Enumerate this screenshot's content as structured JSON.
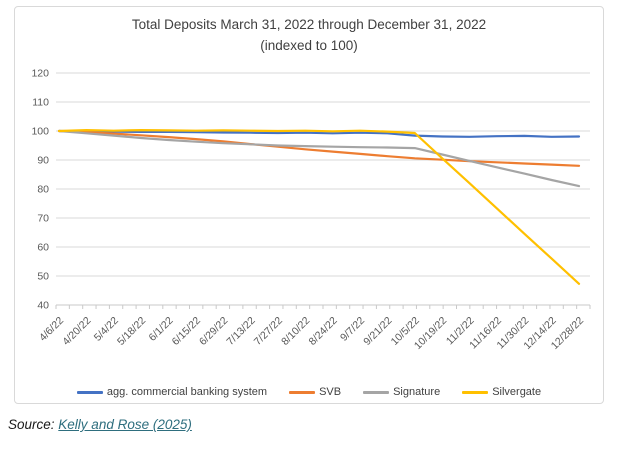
{
  "chart_data": {
    "type": "line",
    "title_line1": "Total Deposits March 31, 2022 through December 31, 2022",
    "title_line2": "(indexed to 100)",
    "categories": [
      "4/6/22",
      "4/20/22",
      "5/4/22",
      "5/18/22",
      "6/1/22",
      "6/15/22",
      "6/29/22",
      "7/13/22",
      "7/27/22",
      "8/10/22",
      "8/24/22",
      "9/7/22",
      "9/21/22",
      "10/5/22",
      "10/19/22",
      "11/2/22",
      "11/16/22",
      "11/30/22",
      "12/14/22",
      "12/28/22"
    ],
    "series": [
      {
        "name": "agg. commercial banking system",
        "color": "#4472C4",
        "values": [
          100,
          99.9,
          99.8,
          99.7,
          99.7,
          99.6,
          99.5,
          99.4,
          99.3,
          99.4,
          99.2,
          99.4,
          99.2,
          98.4,
          98.1,
          98.0,
          98.2,
          98.3,
          98.0,
          98.1
        ]
      },
      {
        "name": "SVB",
        "color": "#ED7D31",
        "values": [
          100,
          99.6,
          99.1,
          98.5,
          97.9,
          97.2,
          96.4,
          95.5,
          94.6,
          93.7,
          92.9,
          92.1,
          91.3,
          90.6,
          90.1,
          89.6,
          89.2,
          88.8,
          88.4,
          88.0
        ]
      },
      {
        "name": "Signature",
        "color": "#A5A5A5",
        "values": [
          100,
          99.2,
          98.4,
          97.6,
          96.9,
          96.3,
          95.8,
          95.4,
          95.0,
          94.8,
          94.6,
          94.4,
          94.3,
          94.1,
          91.9,
          89.7,
          87.5,
          85.3,
          83.1,
          81.0
        ]
      },
      {
        "name": "Silvergate",
        "color": "#FFC000",
        "values": [
          100,
          100.3,
          100.1,
          100.3,
          100.2,
          100.1,
          100.2,
          100.1,
          100.0,
          100.1,
          99.9,
          100.1,
          99.8,
          99.3,
          90.6,
          82.0,
          73.3,
          64.6,
          56.0,
          47.3
        ]
      }
    ],
    "ylim": [
      40,
      120
    ],
    "ytick_step": 10,
    "yticks": [
      40,
      50,
      60,
      70,
      80,
      90,
      100,
      110,
      120
    ],
    "grid": true,
    "legend_position": "bottom",
    "gridline_color": "#D9D9D9",
    "axis_line_color": "#C9C9C9",
    "axis_label_color": "#595959"
  },
  "source": {
    "label": "Source:",
    "link_text": "Kelly and Rose (2025)",
    "link_color": "#2E6E7E"
  }
}
